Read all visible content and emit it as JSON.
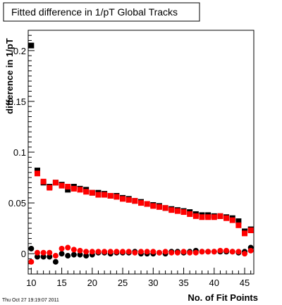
{
  "chart_data": {
    "type": "scatter",
    "title": "Fitted difference in 1/pT  Global Tracks",
    "xlabel": "No. of Fit Points",
    "ylabel": "difference in 1/pT",
    "xlim": [
      9.5,
      46.5
    ],
    "ylim": [
      -0.02,
      0.22
    ],
    "xticks": [
      10,
      15,
      20,
      25,
      30,
      35,
      40,
      45
    ],
    "yticks": [
      0,
      0.05,
      0.1,
      0.15,
      0.2
    ],
    "ytick_labels": [
      "0",
      "0.05",
      "0.1",
      "0.15",
      "0.2"
    ],
    "grid": false,
    "legend": "none",
    "timestamp": "Thu Oct 27 19:19:07 2011",
    "colors": {
      "series_1": "#000000",
      "series_2": "#ff0000"
    },
    "series": [
      {
        "marker": "square",
        "x": [
          10,
          11,
          12,
          13,
          14,
          15,
          16,
          17,
          18,
          19,
          20,
          21,
          22,
          23,
          24,
          25,
          26,
          27,
          28,
          29,
          30,
          31,
          32,
          33,
          34,
          35,
          36,
          37,
          38,
          39,
          40,
          41,
          42,
          43,
          44,
          45,
          46
        ],
        "y": [
          0.205,
          0.082,
          0.07,
          0.066,
          0.07,
          0.068,
          0.063,
          0.066,
          0.064,
          0.063,
          0.06,
          0.06,
          0.059,
          0.057,
          0.057,
          0.055,
          0.054,
          0.052,
          0.051,
          0.049,
          0.048,
          0.047,
          0.045,
          0.044,
          0.043,
          0.042,
          0.041,
          0.039,
          0.038,
          0.038,
          0.037,
          0.037,
          0.036,
          0.035,
          0.032,
          0.022,
          0.024
        ]
      },
      {
        "marker": "square",
        "x": [
          10,
          11,
          12,
          13,
          14,
          15,
          16,
          17,
          18,
          19,
          20,
          21,
          22,
          23,
          24,
          25,
          26,
          27,
          28,
          29,
          30,
          31,
          32,
          33,
          34,
          35,
          36,
          37,
          38,
          39,
          40,
          41,
          42,
          43,
          44,
          45,
          46
        ],
        "y": [
          null,
          0.079,
          0.071,
          0.065,
          0.07,
          0.067,
          0.066,
          0.064,
          0.063,
          0.061,
          0.06,
          0.058,
          0.058,
          0.057,
          0.056,
          0.054,
          0.053,
          0.052,
          0.05,
          0.049,
          0.047,
          0.046,
          0.045,
          0.043,
          0.042,
          0.041,
          0.039,
          0.037,
          0.036,
          0.036,
          0.036,
          0.037,
          0.035,
          0.033,
          0.028,
          0.02,
          0.023
        ]
      },
      {
        "marker": "circle",
        "x": [
          10,
          11,
          12,
          13,
          14,
          15,
          16,
          17,
          18,
          19,
          20,
          21,
          22,
          23,
          24,
          25,
          26,
          27,
          28,
          29,
          30,
          31,
          32,
          33,
          34,
          35,
          36,
          37,
          38,
          39,
          40,
          41,
          42,
          43,
          44,
          45,
          46
        ],
        "y": [
          0.005,
          -0.003,
          -0.003,
          -0.003,
          -0.008,
          0.0,
          -0.002,
          -0.001,
          -0.001,
          -0.002,
          -0.001,
          0.001,
          0.001,
          0.0,
          0.001,
          0.001,
          0.001,
          0.002,
          0.0,
          0.0,
          0.0,
          0.001,
          0.0,
          0.002,
          0.002,
          0.001,
          0.002,
          0.003,
          0.002,
          0.002,
          0.002,
          0.002,
          0.002,
          0.002,
          0.001,
          0.002,
          0.006
        ]
      },
      {
        "marker": "circle",
        "x": [
          10,
          11,
          12,
          13,
          14,
          15,
          16,
          17,
          18,
          19,
          20,
          21,
          22,
          23,
          24,
          25,
          26,
          27,
          28,
          29,
          30,
          31,
          32,
          33,
          34,
          35,
          36,
          37,
          38,
          39,
          40,
          41,
          42,
          43,
          44,
          45,
          46
        ],
        "y": [
          -0.008,
          0.001,
          0.001,
          0.001,
          -0.002,
          0.005,
          0.006,
          0.004,
          0.003,
          0.002,
          0.002,
          0.002,
          0.002,
          0.002,
          0.002,
          0.002,
          0.002,
          0.001,
          0.002,
          0.002,
          0.002,
          0.001,
          0.002,
          0.001,
          0.001,
          0.002,
          0.001,
          0.001,
          0.002,
          0.002,
          0.002,
          0.003,
          0.003,
          0.002,
          0.002,
          0.0,
          0.003
        ]
      }
    ]
  }
}
